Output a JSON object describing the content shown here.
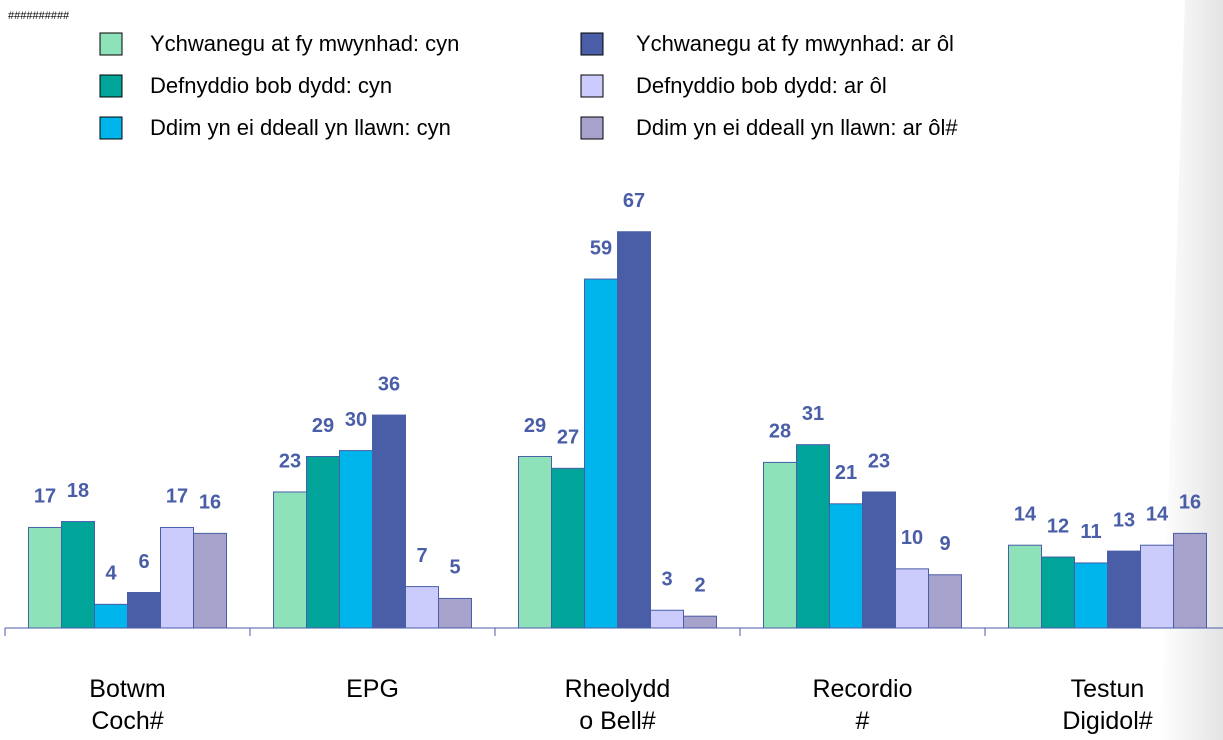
{
  "chart_data": {
    "type": "bar",
    "corner_text": "##########",
    "categories": [
      "Botwm\nCoch#",
      "EPG",
      "Rheolydd\no Bell#",
      "Recordio\n#",
      "Testun\nDigidol#"
    ],
    "series": [
      {
        "name": "Ychwanegu at fy mwynhad: cyn",
        "color": "#8ee2b9",
        "values": [
          17,
          23,
          29,
          28,
          14
        ]
      },
      {
        "name": "Defnyddio bob dydd: cyn",
        "color": "#00a499",
        "values": [
          18,
          29,
          27,
          31,
          12
        ]
      },
      {
        "name": "Ddim yn ei ddeall yn llawn: cyn",
        "color": "#00b4ec",
        "values": [
          4,
          30,
          59,
          21,
          11
        ]
      },
      {
        "name": "Ychwanegu at fy mwynhad: ar ôl",
        "color": "#4a5ea8",
        "values": [
          6,
          36,
          67,
          23,
          13
        ]
      },
      {
        "name": "Defnyddio bob dydd: ar ôl",
        "color": "#ccccfc",
        "values": [
          17,
          7,
          3,
          10,
          14
        ]
      },
      {
        "name": "Ddim yn ei ddeall yn llawn: ar ôl#",
        "color": "#a6a2cc",
        "values": [
          16,
          5,
          2,
          9,
          16
        ]
      }
    ],
    "ylim": [
      0,
      70
    ],
    "legend": "top"
  }
}
